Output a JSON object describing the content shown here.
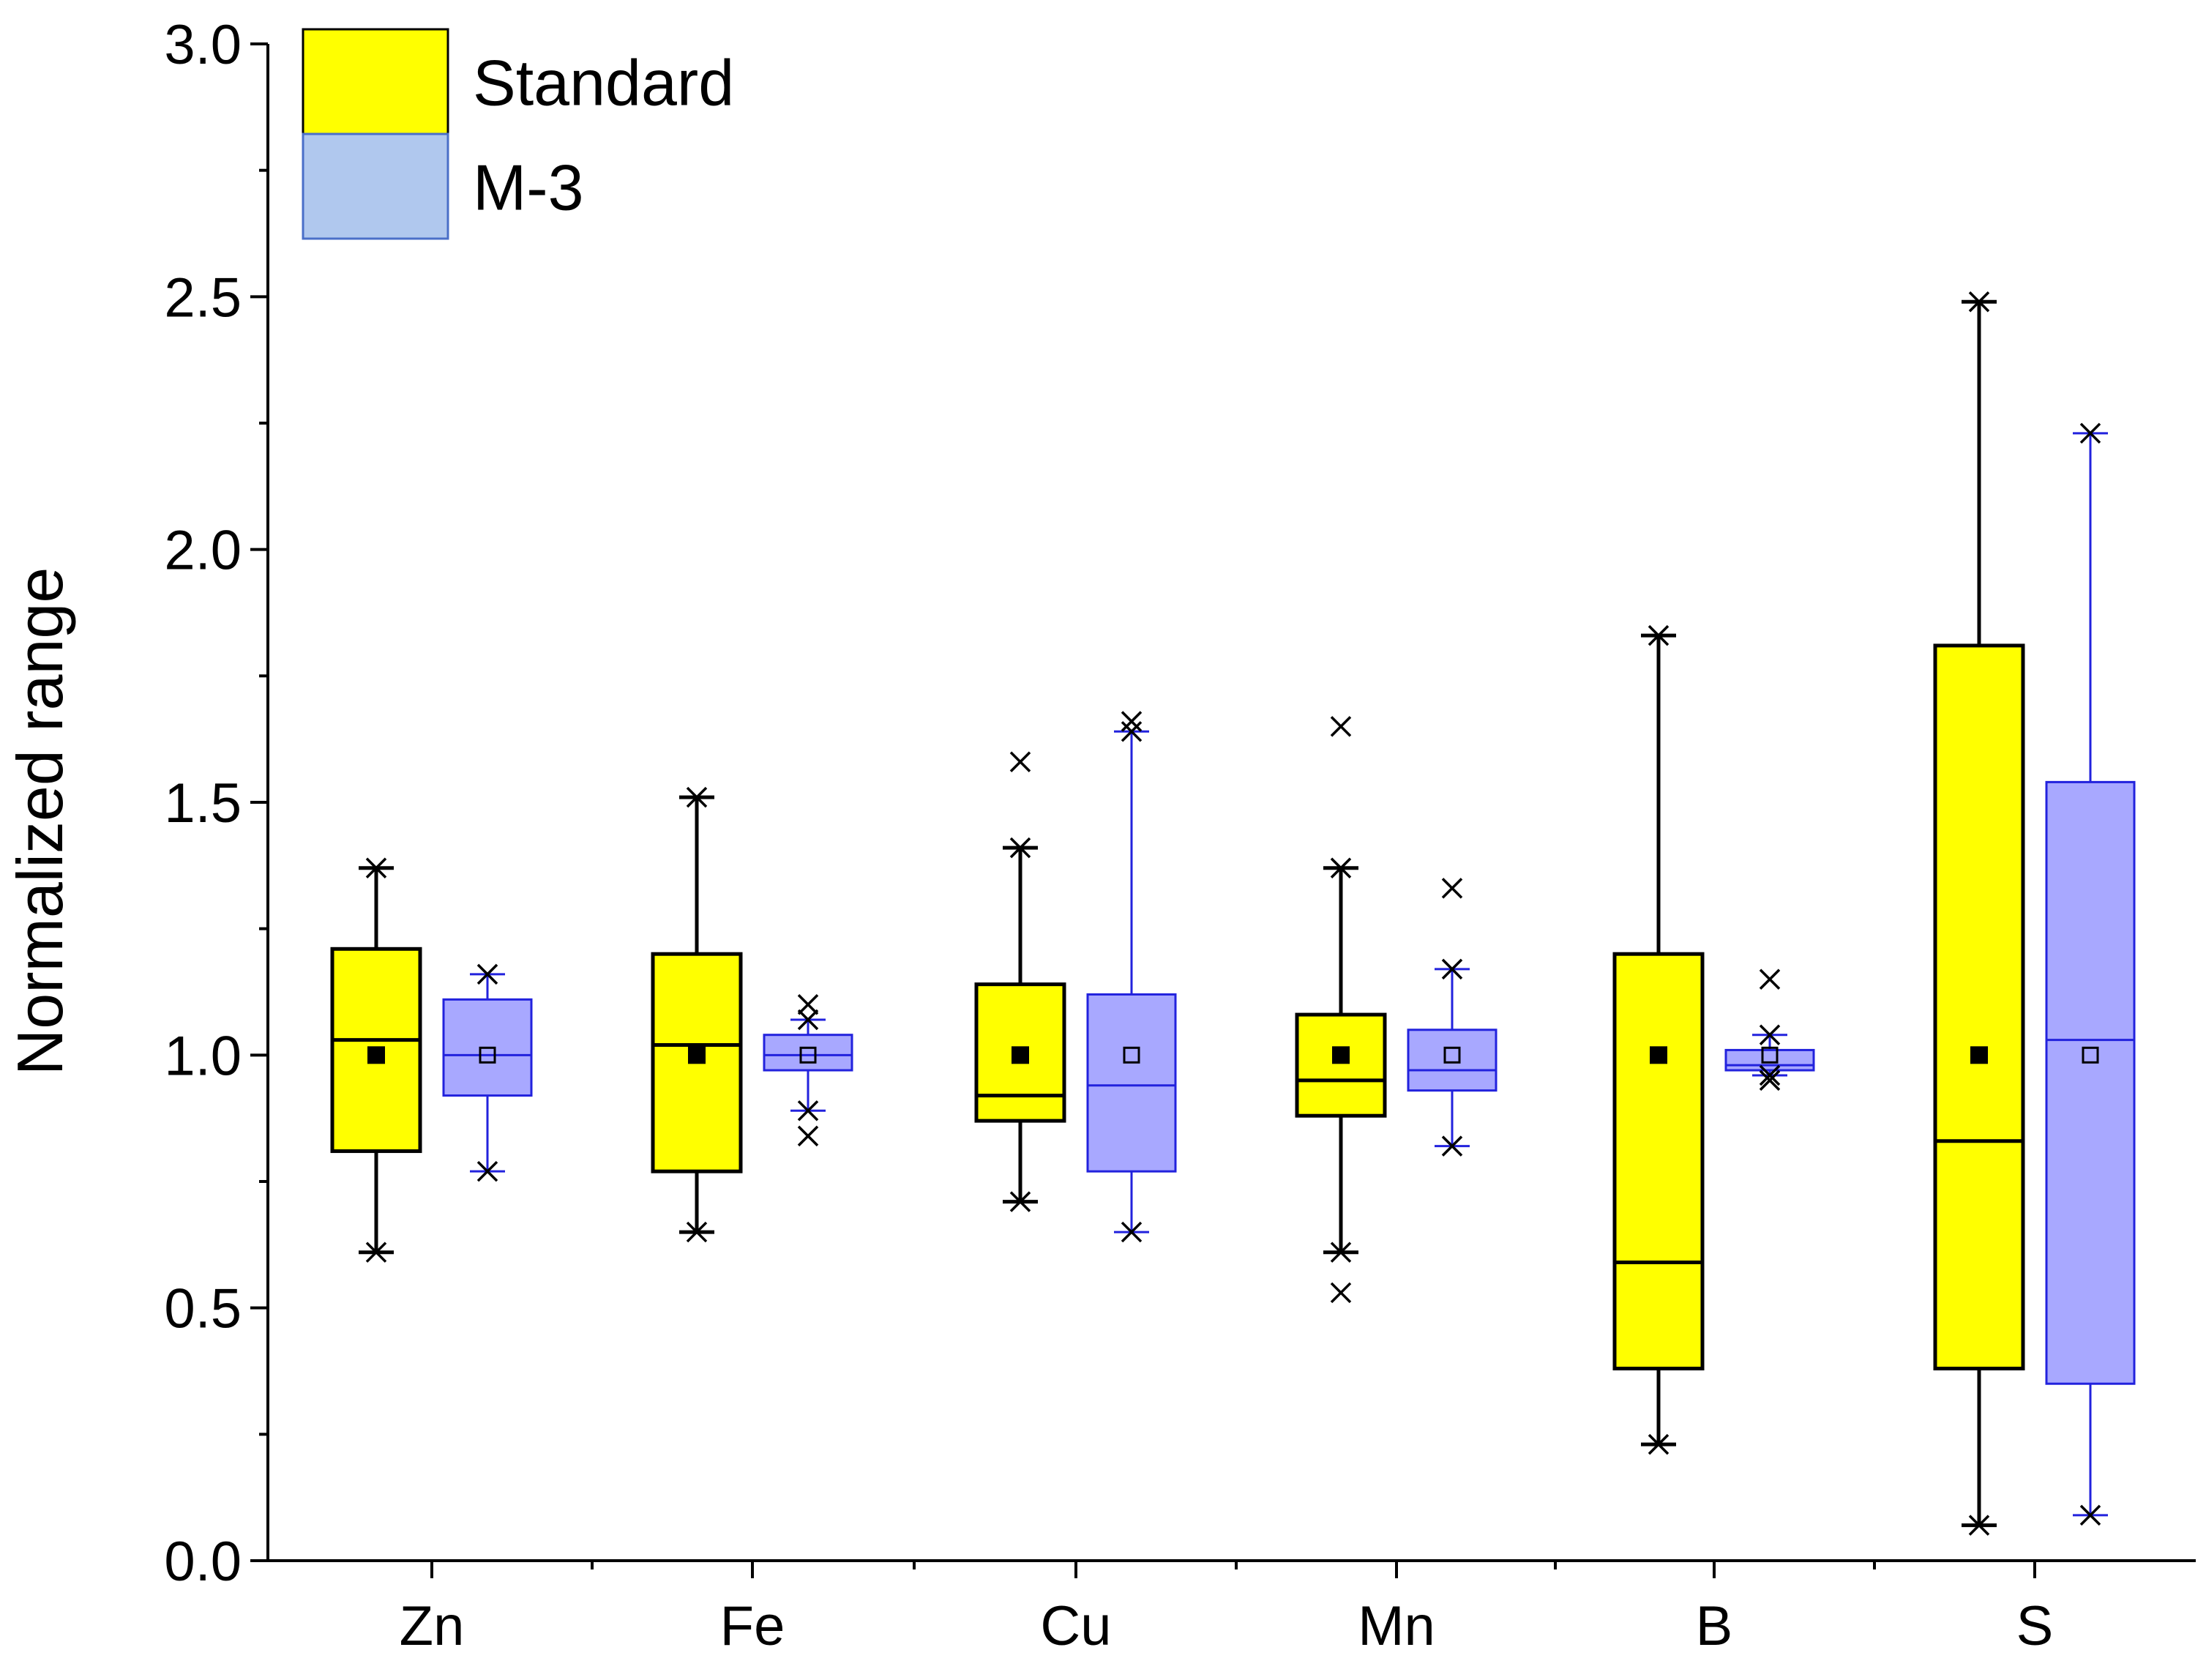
{
  "chart_data": {
    "type": "box",
    "title": "",
    "xlabel": "",
    "ylabel": "Normalized range",
    "ylim": [
      0.0,
      3.0
    ],
    "yticks": [
      "0.0",
      "0.5",
      "1.0",
      "1.5",
      "2.0",
      "2.5",
      "3.0"
    ],
    "categories": [
      "Zn",
      "Fe",
      "Cu",
      "Mn",
      "B",
      "S"
    ],
    "legend_position": "top-left",
    "series": [
      {
        "name": "Standard",
        "fill": "#ffff00",
        "stroke": "#000000",
        "mean_marker": "filled-square",
        "boxes": [
          {
            "category": "Zn",
            "whisker_low": 0.61,
            "q1": 0.81,
            "median": 1.03,
            "q3": 1.21,
            "whisker_high": 1.37,
            "mean": 1.0,
            "outliers": []
          },
          {
            "category": "Fe",
            "whisker_low": 0.65,
            "q1": 0.77,
            "median": 1.02,
            "q3": 1.2,
            "whisker_high": 1.51,
            "mean": 1.0,
            "outliers": []
          },
          {
            "category": "Cu",
            "whisker_low": 0.71,
            "q1": 0.87,
            "median": 0.92,
            "q3": 1.14,
            "whisker_high": 1.41,
            "mean": 1.0,
            "outliers": [
              1.58
            ]
          },
          {
            "category": "Mn",
            "whisker_low": 0.61,
            "q1": 0.88,
            "median": 0.95,
            "q3": 1.08,
            "whisker_high": 1.37,
            "mean": 1.0,
            "outliers": [
              0.53,
              1.65
            ]
          },
          {
            "category": "B",
            "whisker_low": 0.23,
            "q1": 0.38,
            "median": 0.59,
            "q3": 1.2,
            "whisker_high": 1.83,
            "mean": 1.0,
            "outliers": []
          },
          {
            "category": "S",
            "whisker_low": 0.07,
            "q1": 0.38,
            "median": 0.83,
            "q3": 1.81,
            "whisker_high": 2.49,
            "mean": 1.0,
            "outliers": []
          }
        ]
      },
      {
        "name": "M-3",
        "fill": "#a8a8ff",
        "stroke": "#2222dd",
        "mean_marker": "open-square",
        "boxes": [
          {
            "category": "Zn",
            "whisker_low": 0.77,
            "q1": 0.92,
            "median": 1.0,
            "q3": 1.11,
            "whisker_high": 1.16,
            "mean": 1.0,
            "outliers": []
          },
          {
            "category": "Fe",
            "whisker_low": 0.89,
            "q1": 0.97,
            "median": 1.0,
            "q3": 1.04,
            "whisker_high": 1.07,
            "mean": 1.0,
            "outliers": [
              0.84,
              1.1
            ]
          },
          {
            "category": "Cu",
            "whisker_low": 0.65,
            "q1": 0.77,
            "median": 0.94,
            "q3": 1.12,
            "whisker_high": 1.64,
            "mean": 1.0,
            "outliers": [
              1.66
            ]
          },
          {
            "category": "Mn",
            "whisker_low": 0.82,
            "q1": 0.93,
            "median": 0.97,
            "q3": 1.05,
            "whisker_high": 1.17,
            "mean": 1.0,
            "outliers": [
              1.33
            ]
          },
          {
            "category": "B",
            "whisker_low": 0.96,
            "q1": 0.97,
            "median": 0.98,
            "q3": 1.01,
            "whisker_high": 1.04,
            "mean": 1.0,
            "outliers": [
              0.95,
              1.15
            ]
          },
          {
            "category": "S",
            "whisker_low": 0.09,
            "q1": 0.35,
            "median": 1.03,
            "q3": 1.54,
            "whisker_high": 2.23,
            "mean": 1.0,
            "outliers": []
          }
        ]
      }
    ],
    "legend_fills": {
      "Standard": "#ffff00",
      "M-3": "#b0c8ee"
    },
    "legend_strokes": {
      "Standard": "#000000",
      "M-3": "#4a6fc8"
    }
  }
}
